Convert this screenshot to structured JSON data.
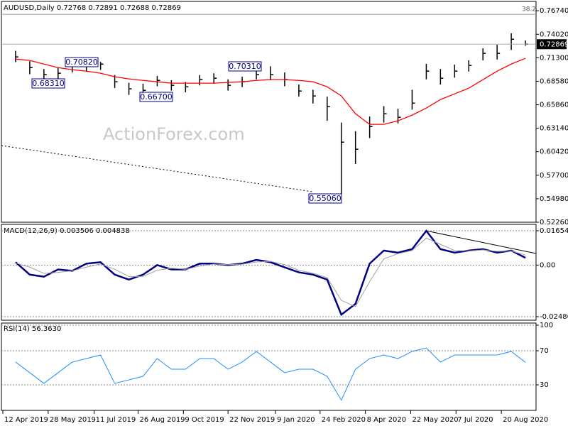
{
  "chart_data": [
    {
      "type": "ohlc",
      "title": "AUDUSD,Daily 0.72768 0.72891 0.72688 0.72869",
      "watermark": "ActionForex.com",
      "x": [
        1,
        2,
        3,
        4,
        5,
        6,
        7,
        8,
        9,
        10,
        11,
        12,
        13,
        14,
        15,
        16,
        17,
        18,
        19,
        20,
        21,
        22,
        23,
        24,
        25,
        26,
        27,
        28,
        29,
        30,
        31,
        32,
        33,
        34,
        35,
        36,
        37
      ],
      "xlim": [
        0,
        37.75
      ],
      "xticks": [
        {
          "value": 0.1,
          "label": "12 Apr 2019"
        },
        {
          "value": 3.3,
          "label": "28 May 2019"
        },
        {
          "value": 6.55,
          "label": "11 Jul 2019"
        },
        {
          "value": 9.65,
          "label": "26 Aug 2019"
        },
        {
          "value": 12.85,
          "label": "9 Oct 2019"
        },
        {
          "value": 16,
          "label": "22 Nov 2019"
        },
        {
          "value": 19.35,
          "label": "9 Jan 2020"
        },
        {
          "value": 22.5,
          "label": "24 Feb 2020"
        },
        {
          "value": 25.7,
          "label": "8 Apr 2020"
        },
        {
          "value": 28.9,
          "label": "22 May 2020"
        },
        {
          "value": 32.1,
          "label": "7 Jul 2020"
        },
        {
          "value": 35.3,
          "label": "20 Aug 2020"
        }
      ],
      "ylim": [
        0.5226,
        0.7774
      ],
      "yticks": [
        {
          "value": 0.7674,
          "label": "0.76740"
        },
        {
          "value": 0.7402,
          "label": "0.74020"
        },
        {
          "value": 0.713,
          "label": "0.71300"
        },
        {
          "value": 0.6858,
          "label": "0.68580"
        },
        {
          "value": 0.6586,
          "label": "0.65860"
        },
        {
          "value": 0.6314,
          "label": "0.63140"
        },
        {
          "value": 0.6042,
          "label": "0.60420"
        },
        {
          "value": 0.577,
          "label": "0.57700"
        },
        {
          "value": 0.5498,
          "label": "0.54980"
        },
        {
          "value": 0.5226,
          "label": "0.52260"
        }
      ],
      "grid": false,
      "color": "#000000",
      "high": [
        0.721,
        0.709,
        0.7,
        0.702,
        0.707,
        0.708,
        0.7082,
        0.693,
        0.684,
        0.683,
        0.692,
        0.687,
        0.685,
        0.693,
        0.695,
        0.688,
        0.691,
        0.699,
        0.7031,
        0.696,
        0.682,
        0.676,
        0.668,
        0.638,
        0.628,
        0.645,
        0.657,
        0.654,
        0.676,
        0.706,
        0.7,
        0.705,
        0.71,
        0.724,
        0.728,
        0.7414,
        0.733
      ],
      "low": [
        0.708,
        0.694,
        0.687,
        0.6831,
        0.696,
        0.697,
        0.699,
        0.678,
        0.67,
        0.667,
        0.68,
        0.675,
        0.673,
        0.681,
        0.683,
        0.675,
        0.679,
        0.688,
        0.687,
        0.68,
        0.668,
        0.66,
        0.64,
        0.5506,
        0.59,
        0.62,
        0.638,
        0.637,
        0.653,
        0.688,
        0.682,
        0.69,
        0.697,
        0.71,
        0.711,
        0.722,
        0.7269
      ],
      "close": [
        0.714,
        0.7016,
        0.6934,
        0.6951,
        0.7041,
        0.7033,
        0.7057,
        0.6852,
        0.677,
        0.6753,
        0.6868,
        0.6811,
        0.6794,
        0.6877,
        0.6893,
        0.6811,
        0.6852,
        0.6934,
        0.6934,
        0.6877,
        0.6745,
        0.6688,
        0.6564,
        0.6153,
        0.6071,
        0.6334,
        0.6482,
        0.6441,
        0.6605,
        0.6975,
        0.6893,
        0.6975,
        0.7041,
        0.7181,
        0.7181,
        0.7345,
        0.72869
      ],
      "ma": {
        "color": "#ff0000",
        "values": [
          0.7115,
          0.7099,
          0.7057,
          0.7016,
          0.6992,
          0.6975,
          0.6951,
          0.691,
          0.6885,
          0.6868,
          0.6852,
          0.6836,
          0.6836,
          0.6836,
          0.6836,
          0.6844,
          0.6852,
          0.6868,
          0.6877,
          0.6877,
          0.6868,
          0.6852,
          0.6794,
          0.6688,
          0.6482,
          0.6359,
          0.6359,
          0.64,
          0.6466,
          0.6548,
          0.6646,
          0.6712,
          0.6778,
          0.6877,
          0.6975,
          0.7057,
          0.7123
        ]
      },
      "current_price": {
        "value": 0.72869,
        "label": "0.72869"
      },
      "fib_label": "38.2",
      "fib_level": 0.7633,
      "level_labels": [
        "0.70820",
        "0.68310",
        "0.66700",
        "0.70310",
        "0.55060"
      ]
    },
    {
      "type": "line",
      "title": "MACD(12,26,9) 0.003506 0.004838",
      "ylim": [
        -0.02623,
        0.01928
      ],
      "yticks": [
        0.01654,
        {
          "value": 0,
          "label": "0.00"
        },
        -0.02486
      ],
      "grid": true,
      "series": [
        {
          "color": "#000080",
          "width": 2.5,
          "values": [
            0.0014,
            -0.0046,
            -0.0056,
            -0.0021,
            -0.0028,
            0.0007,
            0.0014,
            -0.0046,
            -0.007,
            -0.0046,
            0,
            -0.0021,
            -0.0021,
            0.0007,
            0.0007,
            0,
            0.0007,
            0.0025,
            0.0014,
            -0.0011,
            -0.0035,
            -0.0046,
            -0.007,
            -0.0239,
            -0.0187,
            0.0007,
            0.007,
            0.006,
            0.0077,
            0.0165,
            0.0077,
            0.006,
            0.007,
            0.0077,
            0.006,
            0.007,
            0.0035
          ]
        },
        {
          "color": "#a0a0a0",
          "width": 1,
          "values": [
            0.001,
            -0.001,
            -0.004,
            -0.0035,
            -0.0028,
            -0.001,
            0.0005,
            -0.002,
            -0.0055,
            -0.0055,
            -0.0025,
            -0.0015,
            -0.002,
            -0.0005,
            0.0005,
            0.0002,
            0.0004,
            0.0015,
            0.0018,
            0.0002,
            -0.0025,
            -0.004,
            -0.006,
            -0.017,
            -0.02,
            -0.008,
            0.003,
            0.0055,
            0.007,
            0.013,
            0.01,
            0.007,
            0.0068,
            0.0073,
            0.0066,
            0.0068,
            0.0048
          ]
        }
      ]
    },
    {
      "type": "line",
      "title": "RSI(14) 56.3630",
      "ylim": [
        0,
        102.5
      ],
      "yticks": [
        100,
        70,
        30
      ],
      "grid": true,
      "series": [
        {
          "color": "#1e90ff",
          "width": 1,
          "values": [
            56.7,
            44.2,
            31.7,
            44.2,
            56.7,
            60.8,
            65.0,
            31.7,
            35.8,
            40.0,
            60.8,
            48.3,
            48.3,
            60.8,
            60.8,
            48.3,
            56.7,
            69.2,
            56.7,
            44.2,
            48.3,
            48.3,
            40.0,
            12.0,
            48.3,
            60.8,
            65.0,
            60.8,
            69.2,
            73.3,
            56.7,
            65.0,
            65.0,
            65.0,
            65.0,
            69.2,
            56.4
          ]
        }
      ]
    }
  ]
}
